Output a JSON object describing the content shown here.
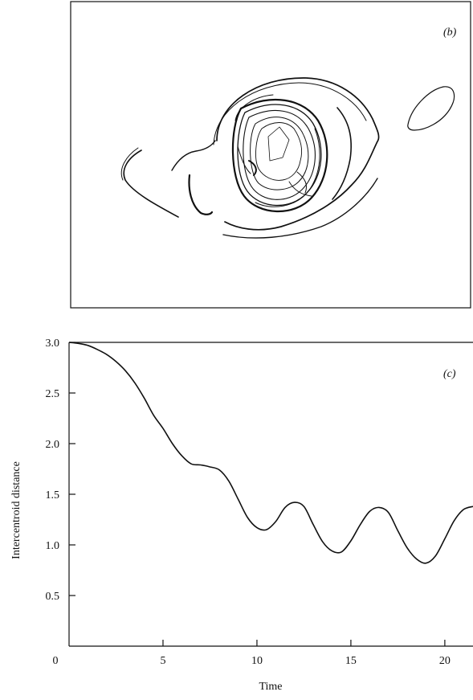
{
  "panel_b": {
    "label": "(b)"
  },
  "chart_data": {
    "type": "line",
    "panel_label": "(c)",
    "title": "",
    "xlabel": "Time",
    "ylabel": "Intercentroid distance",
    "xlim": [
      0,
      21.5
    ],
    "ylim": [
      0,
      3.0
    ],
    "xticks": [
      0,
      5,
      10,
      15,
      20
    ],
    "yticks": [
      0.5,
      1.0,
      1.5,
      2.0,
      2.5,
      3.0
    ],
    "xtick_labels": [
      "0",
      "5",
      "10",
      "15",
      "20"
    ],
    "ytick_labels": [
      "0.5",
      "1.0",
      "1.5",
      "2.0",
      "2.5",
      "3.0"
    ],
    "grid": false,
    "series": [
      {
        "x": [
          0,
          0.5,
          1,
          1.5,
          2,
          2.5,
          3,
          3.5,
          4,
          4.5,
          5,
          5.5,
          6,
          6.5,
          7,
          7.5,
          8,
          8.5,
          9,
          9.5,
          10,
          10.5,
          11,
          11.5,
          12,
          12.5,
          13,
          13.5,
          14,
          14.5,
          15,
          15.5,
          16,
          16.5,
          17,
          17.5,
          18,
          18.5,
          19,
          19.5,
          20,
          20.5,
          21,
          21.5
        ],
        "y": [
          3.0,
          2.99,
          2.97,
          2.93,
          2.88,
          2.81,
          2.72,
          2.6,
          2.45,
          2.28,
          2.15,
          2.0,
          1.88,
          1.8,
          1.79,
          1.77,
          1.74,
          1.63,
          1.45,
          1.27,
          1.17,
          1.15,
          1.23,
          1.37,
          1.42,
          1.38,
          1.2,
          1.03,
          0.94,
          0.93,
          1.04,
          1.2,
          1.33,
          1.37,
          1.32,
          1.14,
          0.97,
          0.86,
          0.82,
          0.89,
          1.06,
          1.24,
          1.35,
          1.38
        ]
      }
    ]
  }
}
